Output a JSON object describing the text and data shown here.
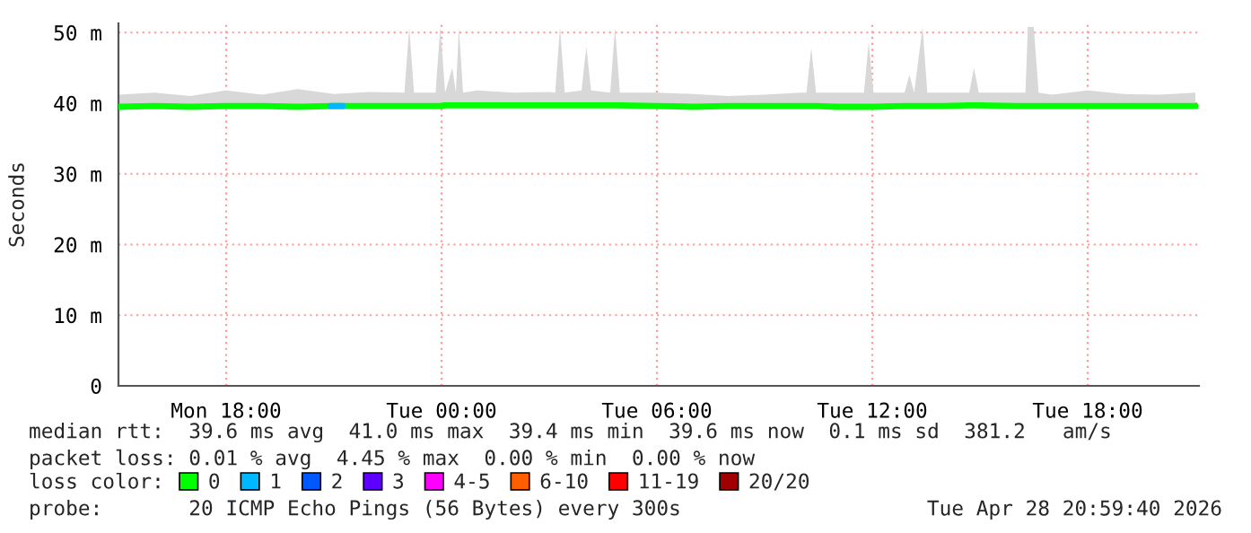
{
  "chart_data": {
    "type": "line",
    "ylabel": "Seconds",
    "x": [
      "2026-04-27T15:00",
      "2026-04-27T16:00",
      "2026-04-27T17:00",
      "2026-04-27T18:00",
      "2026-04-27T19:00",
      "2026-04-27T20:00",
      "2026-04-27T21:00",
      "2026-04-27T22:00",
      "2026-04-27T22:58",
      "2026-04-27T23:06",
      "2026-04-27T23:14",
      "2026-04-27T23:50",
      "2026-04-27T23:58",
      "2026-04-28T00:06",
      "2026-04-28T00:18",
      "2026-04-28T00:24",
      "2026-04-28T00:29",
      "2026-04-28T00:36",
      "2026-04-28T01:00",
      "2026-04-28T02:00",
      "2026-04-28T03:00",
      "2026-04-28T03:10",
      "2026-04-28T03:18",
      "2026-04-28T03:26",
      "2026-04-28T03:54",
      "2026-04-28T04:02",
      "2026-04-28T04:10",
      "2026-04-28T04:42",
      "2026-04-28T04:50",
      "2026-04-28T04:58",
      "2026-04-28T06:00",
      "2026-04-28T07:00",
      "2026-04-28T08:00",
      "2026-04-28T09:00",
      "2026-04-28T10:00",
      "2026-04-28T10:10",
      "2026-04-28T10:18",
      "2026-04-28T10:26",
      "2026-04-28T11:00",
      "2026-04-28T11:46",
      "2026-04-28T11:54",
      "2026-04-28T12:02",
      "2026-04-28T12:54",
      "2026-04-28T13:02",
      "2026-04-28T13:10",
      "2026-04-28T13:24",
      "2026-04-28T13:32",
      "2026-04-28T14:00",
      "2026-04-28T14:42",
      "2026-04-28T14:50",
      "2026-04-28T14:58",
      "2026-04-28T16:00",
      "2026-04-28T16:16",
      "2026-04-28T16:20",
      "2026-04-28T16:30",
      "2026-04-28T16:38",
      "2026-04-28T17:00",
      "2026-04-28T18:00",
      "2026-04-28T19:00",
      "2026-04-28T20:00",
      "2026-04-28T21:00"
    ],
    "xlim": [
      "2026-04-27T15:00",
      "2026-04-28T21:06"
    ],
    "xticks": [
      {
        "value": "2026-04-27T18:00",
        "label": "Mon 18:00"
      },
      {
        "value": "2026-04-28T00:00",
        "label": "Tue 00:00"
      },
      {
        "value": "2026-04-28T06:00",
        "label": "Tue 06:00"
      },
      {
        "value": "2026-04-28T12:00",
        "label": "Tue 12:00"
      },
      {
        "value": "2026-04-28T18:00",
        "label": "Tue 18:00"
      }
    ],
    "ylim": [
      0,
      51.3
    ],
    "yticks": [
      0,
      {
        "value": 10,
        "label": "10 m"
      },
      {
        "value": 20,
        "label": "20 m"
      },
      {
        "value": 30,
        "label": "30 m"
      },
      {
        "value": 40,
        "label": "40 m"
      },
      {
        "value": 50,
        "label": "50 m"
      }
    ],
    "grid": true,
    "legend": "bottom",
    "legend_title": "loss color:",
    "series": [
      {
        "name": "0",
        "color": "#00ff00",
        "values": [
          39.5,
          39.6,
          39.5,
          39.6,
          39.6,
          39.5,
          39.6,
          39.6,
          39.6,
          39.6,
          39.6,
          39.6,
          39.6,
          39.7,
          39.7,
          39.7,
          39.7,
          39.7,
          39.7,
          39.7,
          39.7,
          39.7,
          39.7,
          39.7,
          39.7,
          39.7,
          39.7,
          39.7,
          39.7,
          39.7,
          39.6,
          39.5,
          39.6,
          39.6,
          39.6,
          39.6,
          39.6,
          39.6,
          39.5,
          39.5,
          39.5,
          39.5,
          39.6,
          39.6,
          39.6,
          39.6,
          39.6,
          39.6,
          39.7,
          39.7,
          39.7,
          39.6,
          39.6,
          39.6,
          39.6,
          39.6,
          39.6,
          39.6,
          39.6,
          39.6,
          39.6
        ],
        "lower": [
          39.2,
          39.2,
          39.2,
          39.2,
          39.2,
          39.2,
          39.2,
          39.2,
          39.2,
          39.2,
          39.2,
          39.2,
          39.2,
          39.3,
          39.3,
          39.3,
          39.3,
          39.3,
          39.3,
          39.3,
          39.3,
          39.3,
          39.3,
          39.3,
          39.3,
          39.3,
          39.3,
          39.3,
          39.3,
          39.3,
          39.2,
          39.2,
          39.2,
          39.2,
          39.2,
          39.2,
          39.2,
          39.2,
          39.2,
          39.2,
          39.2,
          39.2,
          39.2,
          39.2,
          39.2,
          39.2,
          39.2,
          39.2,
          39.3,
          39.3,
          39.3,
          39.2,
          39.2,
          39.2,
          39.2,
          39.2,
          39.2,
          39.2,
          39.2,
          39.2,
          39.2
        ],
        "upper": [
          41.2,
          41.5,
          41.0,
          41.8,
          41.2,
          42.0,
          41.3,
          41.6,
          41.5,
          50.8,
          41.5,
          41.5,
          50.8,
          41.5,
          45.0,
          41.5,
          50.8,
          41.5,
          41.8,
          41.5,
          41.6,
          41.5,
          50.8,
          41.5,
          41.8,
          48.0,
          41.8,
          41.5,
          50.8,
          41.5,
          41.5,
          41.3,
          41.0,
          41.2,
          41.5,
          41.5,
          47.8,
          41.5,
          41.5,
          41.5,
          48.6,
          41.5,
          41.5,
          44.0,
          41.5,
          50.8,
          41.5,
          41.5,
          41.5,
          45.0,
          41.5,
          41.5,
          41.5,
          50.8,
          50.8,
          41.5,
          41.2,
          41.8,
          41.3,
          41.2,
          41.5
        ]
      },
      {
        "name": "1",
        "color": "#00b8ff",
        "x": [
          "2026-04-27T20:55",
          "2026-04-27T21:15"
        ],
        "values": [
          39.6,
          39.6
        ]
      },
      {
        "name": "2",
        "color": "#0059ff",
        "values": [
          null,
          null,
          null,
          null,
          null,
          null,
          null,
          null,
          null,
          null,
          null,
          null,
          null,
          null,
          null,
          null,
          null,
          null,
          null,
          null,
          null,
          null,
          null,
          null,
          null,
          null,
          null,
          null,
          null,
          null,
          null,
          null,
          null,
          null,
          null,
          null,
          null,
          null,
          null,
          null,
          null,
          null,
          null,
          null,
          null,
          null,
          null,
          null,
          null,
          null,
          null,
          null,
          null,
          null,
          null,
          null,
          null,
          null,
          null,
          null,
          null
        ]
      },
      {
        "name": "3",
        "color": "#5e00ff",
        "values": [
          null,
          null,
          null,
          null,
          null,
          null,
          null,
          null,
          null,
          null,
          null,
          null,
          null,
          null,
          null,
          null,
          null,
          null,
          null,
          null,
          null,
          null,
          null,
          null,
          null,
          null,
          null,
          null,
          null,
          null,
          null,
          null,
          null,
          null,
          null,
          null,
          null,
          null,
          null,
          null,
          null,
          null,
          null,
          null,
          null,
          null,
          null,
          null,
          null,
          null,
          null,
          null,
          null,
          null,
          null,
          null,
          null,
          null,
          null,
          null,
          null
        ]
      },
      {
        "name": "4-5",
        "color": "#ff00ff",
        "values": [
          null,
          null,
          null,
          null,
          null,
          null,
          null,
          null,
          null,
          null,
          null,
          null,
          null,
          null,
          null,
          null,
          null,
          null,
          null,
          null,
          null,
          null,
          null,
          null,
          null,
          null,
          null,
          null,
          null,
          null,
          null,
          null,
          null,
          null,
          null,
          null,
          null,
          null,
          null,
          null,
          null,
          null,
          null,
          null,
          null,
          null,
          null,
          null,
          null,
          null,
          null,
          null,
          null,
          null,
          null,
          null,
          null,
          null,
          null,
          null,
          null
        ]
      },
      {
        "name": "6-10",
        "color": "#ff5e00",
        "values": [
          null,
          null,
          null,
          null,
          null,
          null,
          null,
          null,
          null,
          null,
          null,
          null,
          null,
          null,
          null,
          null,
          null,
          null,
          null,
          null,
          null,
          null,
          null,
          null,
          null,
          null,
          null,
          null,
          null,
          null,
          null,
          null,
          null,
          null,
          null,
          null,
          null,
          null,
          null,
          null,
          null,
          null,
          null,
          null,
          null,
          null,
          null,
          null,
          null,
          null,
          null,
          null,
          null,
          null,
          null,
          null,
          null,
          null,
          null,
          null,
          null
        ]
      },
      {
        "name": "11-19",
        "color": "#ff0000",
        "values": [
          null,
          null,
          null,
          null,
          null,
          null,
          null,
          null,
          null,
          null,
          null,
          null,
          null,
          null,
          null,
          null,
          null,
          null,
          null,
          null,
          null,
          null,
          null,
          null,
          null,
          null,
          null,
          null,
          null,
          null,
          null,
          null,
          null,
          null,
          null,
          null,
          null,
          null,
          null,
          null,
          null,
          null,
          null,
          null,
          null,
          null,
          null,
          null,
          null,
          null,
          null,
          null,
          null,
          null,
          null,
          null,
          null,
          null,
          null,
          null,
          null
        ]
      },
      {
        "name": "20/20",
        "color": "#a10000",
        "values": [
          null,
          null,
          null,
          null,
          null,
          null,
          null,
          null,
          null,
          null,
          null,
          null,
          null,
          null,
          null,
          null,
          null,
          null,
          null,
          null,
          null,
          null,
          null,
          null,
          null,
          null,
          null,
          null,
          null,
          null,
          null,
          null,
          null,
          null,
          null,
          null,
          null,
          null,
          null,
          null,
          null,
          null,
          null,
          null,
          null,
          null,
          null,
          null,
          null,
          null,
          null,
          null,
          null,
          null,
          null,
          null,
          null,
          null,
          null,
          null,
          null
        ]
      }
    ],
    "annotations": [
      "median rtt:  39.6 ms avg  41.0 ms max  39.4 ms min  39.6 ms now  0.1 ms sd  381.2   am/s",
      "packet loss: 0.01 % avg  4.45 % max  0.00 % min  0.00 % now",
      "probe:       20 ICMP Echo Pings (56 Bytes) every 300s",
      "Tue Apr 28 20:59:40 2026"
    ]
  }
}
